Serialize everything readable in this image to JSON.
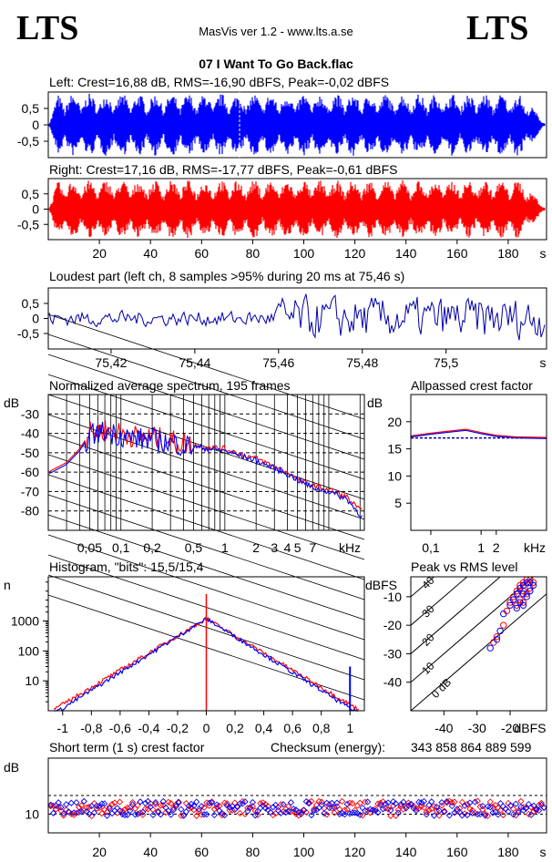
{
  "header": {
    "logo_left": "LTS",
    "logo_right": "LTS",
    "app_title": "MasVis ver 1.2 - www.lts.a.se",
    "file_name": "07 I Want To Go Back.flac"
  },
  "colors": {
    "left": "#0000ff",
    "right": "#ff0000",
    "dark_blue": "#0000aa"
  },
  "chart_data": [
    {
      "id": "left_waveform",
      "type": "area",
      "title": "Left: Crest=16,88 dB, RMS=-16,90 dBFS, Peak=-0,02 dBFS",
      "xlim": [
        0,
        195
      ],
      "ylim": [
        -1,
        1
      ],
      "ytick_labels": [
        "0,5",
        "0",
        "-0,5"
      ],
      "series": [
        {
          "color": "#0000ff"
        }
      ]
    },
    {
      "id": "right_waveform",
      "type": "area",
      "title": "Right: Crest=17,16 dB, RMS=-17,77 dBFS, Peak=-0,61 dBFS",
      "xlim": [
        0,
        195
      ],
      "ylim": [
        -1,
        1
      ],
      "ytick_labels": [
        "0,5",
        "0",
        "-0,5"
      ],
      "xticks": [
        20,
        40,
        60,
        80,
        100,
        120,
        140,
        160,
        180
      ],
      "xunit": "s",
      "series": [
        {
          "color": "#ff0000"
        }
      ]
    },
    {
      "id": "loudest_part",
      "type": "line",
      "title": "Loudest part (left  ch, 8 samples >95% during 20 ms at 75,46 s)",
      "xlim": [
        75.405,
        75.524
      ],
      "ylim": [
        -1,
        1
      ],
      "ytick_labels": [
        "0,5",
        "0",
        "-0,5"
      ],
      "xtick_labels": [
        "75,42",
        "75,44",
        "75,46",
        "75,48",
        "75,5"
      ],
      "xticks": [
        75.42,
        75.44,
        75.46,
        75.48,
        75.5
      ],
      "xunit": "s",
      "series": [
        {
          "color": "#0000aa"
        }
      ]
    },
    {
      "id": "spectrum",
      "type": "line",
      "title": "Normalized average spectrum, 195 frames",
      "ylabel": "dB",
      "xunit": "kHz",
      "xscale": "log",
      "xlim": [
        0.02,
        22
      ],
      "ylim": [
        -90,
        -20
      ],
      "ytick_labels": [
        "-30",
        "-40",
        "-50",
        "-60",
        "-70",
        "-80"
      ],
      "xtick_labels": [
        "0,05",
        "0,1",
        "0,2",
        "0,5",
        "1",
        "2",
        "3",
        "4",
        "5",
        "7"
      ],
      "xticks": [
        0.05,
        0.1,
        0.2,
        0.5,
        1,
        2,
        3,
        4,
        5,
        7
      ],
      "x": [
        0.02,
        0.03,
        0.04,
        0.05,
        0.07,
        0.1,
        0.15,
        0.2,
        0.3,
        0.5,
        0.7,
        1,
        1.5,
        2,
        3,
        4,
        5,
        7,
        10,
        15,
        20
      ],
      "series": [
        {
          "color": "#ff0000",
          "values": [
            -60,
            -55,
            -48,
            -40,
            -38,
            -40,
            -42,
            -42,
            -44,
            -46,
            -47,
            -48,
            -51,
            -53,
            -57,
            -60,
            -64,
            -67,
            -69,
            -73,
            -80
          ]
        },
        {
          "color": "#0000ff",
          "values": [
            -61,
            -56,
            -49,
            -41,
            -39,
            -41,
            -43,
            -43,
            -45,
            -47,
            -48,
            -49,
            -52,
            -54,
            -58,
            -61,
            -64,
            -68,
            -70,
            -74,
            -82
          ]
        }
      ]
    },
    {
      "id": "allpassed_crest",
      "type": "line",
      "title": "Allpassed crest factor",
      "ylabel": "dB",
      "xunit": "kHz",
      "xscale": "log",
      "xlim": [
        0.04,
        20
      ],
      "ylim": [
        0,
        25
      ],
      "ytick_labels": [
        "20",
        "15",
        "10",
        "5"
      ],
      "xtick_labels": [
        "0,1",
        "1",
        "2"
      ],
      "xticks": [
        0.1,
        1,
        2
      ],
      "x": [
        0.04,
        0.1,
        0.2,
        0.5,
        1,
        2,
        5,
        20
      ],
      "series": [
        {
          "color": "#ff0000",
          "values": [
            17.4,
            17.9,
            18.2,
            18.6,
            18.0,
            17.5,
            17.2,
            17.1
          ]
        },
        {
          "color": "#0000ff",
          "values": [
            17.2,
            17.7,
            18.0,
            18.4,
            17.8,
            17.3,
            17.0,
            16.9
          ]
        }
      ],
      "reference_lines": [
        17.0
      ]
    },
    {
      "id": "histogram",
      "type": "line",
      "title": "Histogram, \"bits\": 15,5/15,4",
      "ylabel": "n",
      "yscale": "log",
      "xlim": [
        -1.1,
        1.1
      ],
      "ylim": [
        1,
        30000
      ],
      "ytick_labels": [
        "1000",
        "100",
        "10"
      ],
      "xtick_labels": [
        "-1",
        "-0,8",
        "-0,6",
        "-0,4",
        "-0,2",
        "0",
        "0,2",
        "0,4",
        "0,6",
        "0,8",
        "1"
      ],
      "xticks": [
        -1,
        -0.8,
        -0.6,
        -0.4,
        -0.2,
        0,
        0.2,
        0.4,
        0.6,
        0.8,
        1
      ],
      "x": [
        -1,
        -0.8,
        -0.6,
        -0.4,
        -0.2,
        0,
        0.2,
        0.4,
        0.6,
        0.8,
        1
      ],
      "series": [
        {
          "color": "#ff0000",
          "values": [
            1,
            8,
            30,
            90,
            300,
            1200,
            300,
            90,
            30,
            8,
            1
          ]
        },
        {
          "color": "#0000ff",
          "values": [
            1,
            10,
            35,
            100,
            320,
            1200,
            320,
            100,
            35,
            10,
            1
          ]
        }
      ]
    },
    {
      "id": "peak_vs_rms",
      "type": "scatter",
      "title": "Peak vs RMS level",
      "ylabel": "dBFS",
      "xlabel": "dBFS",
      "xlim": [
        -50,
        -9
      ],
      "ylim": [
        -50,
        -3
      ],
      "ytick_labels": [
        "-10",
        "-20",
        "-30",
        "-40"
      ],
      "yticks": [
        -10,
        -20,
        -30,
        -40
      ],
      "xtick_labels": [
        "-40",
        "-30",
        "-20"
      ],
      "xticks": [
        -40,
        -30,
        -20
      ],
      "crest_line_labels": [
        "40",
        "30",
        "20",
        "10",
        "0 dB"
      ],
      "series": [
        {
          "color": "#ff0000",
          "points": [
            [
              -15,
              -4
            ],
            [
              -14,
              -4
            ],
            [
              -16,
              -5
            ],
            [
              -17,
              -6
            ],
            [
              -16,
              -8
            ],
            [
              -15,
              -9
            ],
            [
              -18,
              -8
            ],
            [
              -19,
              -10
            ],
            [
              -20,
              -12
            ],
            [
              -17,
              -11
            ],
            [
              -16,
              -12
            ],
            [
              -14,
              -7
            ],
            [
              -13,
              -5
            ],
            [
              -18,
              -13
            ],
            [
              -21,
              -15
            ],
            [
              -22,
              -20
            ],
            [
              -24,
              -24
            ],
            [
              -25,
              -26
            ]
          ]
        },
        {
          "color": "#0000ff",
          "points": [
            [
              -15,
              -5
            ],
            [
              -14,
              -5
            ],
            [
              -16,
              -6
            ],
            [
              -17,
              -7
            ],
            [
              -16,
              -9
            ],
            [
              -15,
              -10
            ],
            [
              -18,
              -9
            ],
            [
              -19,
              -11
            ],
            [
              -20,
              -13
            ],
            [
              -17,
              -12
            ],
            [
              -16,
              -13
            ],
            [
              -14,
              -8
            ],
            [
              -13,
              -6
            ],
            [
              -18,
              -14
            ],
            [
              -22,
              -16
            ],
            [
              -23,
              -22
            ],
            [
              -24,
              -25
            ],
            [
              -26,
              -28
            ]
          ]
        }
      ]
    },
    {
      "id": "short_term_crest",
      "type": "scatter",
      "title": "Short term (1 s) crest factor",
      "checksum_label": "Checksum (energy):",
      "checksum_value": "343 858 864 889 599",
      "ylabel": "dB",
      "xunit": "s",
      "xlim": [
        0,
        195
      ],
      "ylim": [
        5,
        25
      ],
      "ytick_labels": [
        "10"
      ],
      "yticks": [
        10
      ],
      "xticks": [
        20,
        40,
        60,
        80,
        100,
        120,
        140,
        160,
        180
      ],
      "reference_lines": [
        15,
        10
      ],
      "series": [
        {
          "color": "#ff0000",
          "mean": 11.5
        },
        {
          "color": "#0000ff",
          "mean": 11.5
        }
      ]
    }
  ]
}
